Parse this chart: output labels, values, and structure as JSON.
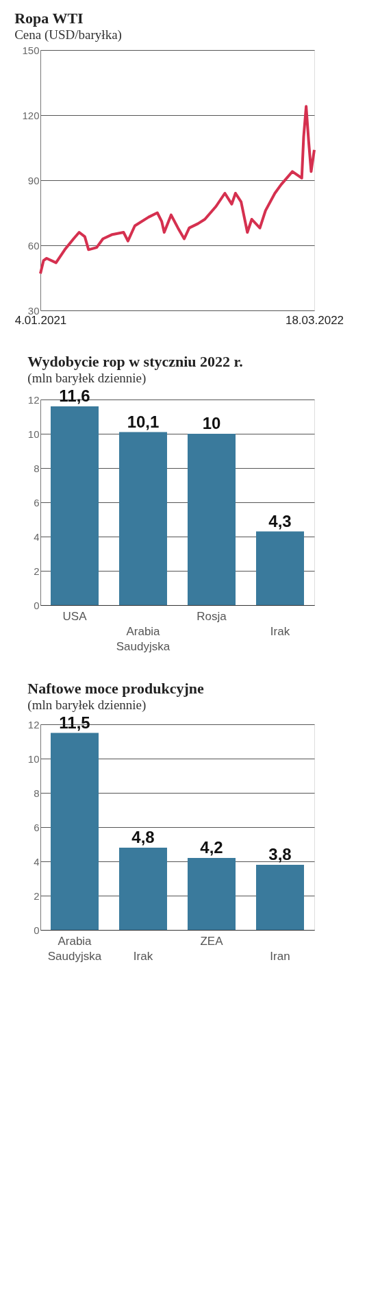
{
  "chart_data": [
    {
      "type": "line",
      "title": "Ropa WTI",
      "subtitle": "Cena (USD/baryłka)",
      "x": [
        "2021-01-04",
        "2021-01-09",
        "2021-01-14",
        "2021-01-29",
        "2021-02-12",
        "2021-02-26",
        "2021-03-07",
        "2021-03-16",
        "2021-03-22",
        "2021-04-04",
        "2021-04-14",
        "2021-04-29",
        "2021-05-17",
        "2021-05-24",
        "2021-06-04",
        "2021-06-26",
        "2021-07-10",
        "2021-07-17",
        "2021-07-21",
        "2021-08-01",
        "2021-08-12",
        "2021-08-22",
        "2021-08-30",
        "2021-09-13",
        "2021-09-24",
        "2021-10-12",
        "2021-10-26",
        "2021-11-06",
        "2021-11-12",
        "2021-11-21",
        "2021-12-01",
        "2021-12-08",
        "2021-12-21",
        "2021-12-30",
        "2022-01-14",
        "2022-01-24",
        "2022-02-11",
        "2022-02-26",
        "2022-03-01",
        "2022-03-05",
        "2022-03-09",
        "2022-03-13",
        "2022-03-18"
      ],
      "series": [
        {
          "color": "#d5304f",
          "values": [
            47,
            53,
            54,
            52,
            58,
            63,
            66,
            64,
            58,
            59,
            63,
            65,
            66,
            62,
            69,
            73,
            75,
            71,
            66,
            74,
            68,
            63,
            68,
            70,
            72,
            78,
            84,
            79,
            84,
            80,
            66,
            72,
            68,
            76,
            84,
            88,
            94,
            91,
            110,
            124,
            108,
            94,
            104
          ]
        }
      ],
      "xlim": [
        "2021-01-04",
        "2022-03-18"
      ],
      "xticks": [
        {
          "value": "2021-01-04",
          "label": "4.01.2021"
        },
        {
          "value": "2022-03-18",
          "label": "18.03.2022"
        }
      ],
      "ylim": [
        30,
        150
      ],
      "yticks": [
        30,
        60,
        90,
        120,
        150
      ],
      "grid": "y",
      "line_style": "solid",
      "marker": "none"
    },
    {
      "type": "bar",
      "title": "Wydobycie rop w styczniu 2022 r.",
      "subtitle": "(mln baryłek dziennie)",
      "categories": [
        "USA",
        "Arabia Saudyjska",
        "Rosja",
        "Irak"
      ],
      "series": [
        {
          "color": "#3a7a9c",
          "values": [
            11.6,
            10.1,
            10,
            4.3
          ]
        }
      ],
      "value_labels": [
        "11,6",
        "10,1",
        "10",
        "4,3"
      ],
      "ylim": [
        0,
        12
      ],
      "yticks": [
        0,
        2,
        4,
        6,
        8,
        10,
        12
      ],
      "grid": "y"
    },
    {
      "type": "bar",
      "title": "Naftowe moce produkcyjne",
      "subtitle": "(mln baryłek dziennie)",
      "categories": [
        "Arabia Saudyjska",
        "Irak",
        "ZEA",
        "Iran"
      ],
      "series": [
        {
          "color": "#3a7a9c",
          "values": [
            11.5,
            4.8,
            4.2,
            3.8
          ]
        }
      ],
      "value_labels": [
        "11,5",
        "4,8",
        "4,2",
        "3,8"
      ],
      "ylim": [
        0,
        12
      ],
      "yticks": [
        0,
        2,
        4,
        6,
        8,
        10,
        12
      ],
      "grid": "y"
    }
  ]
}
